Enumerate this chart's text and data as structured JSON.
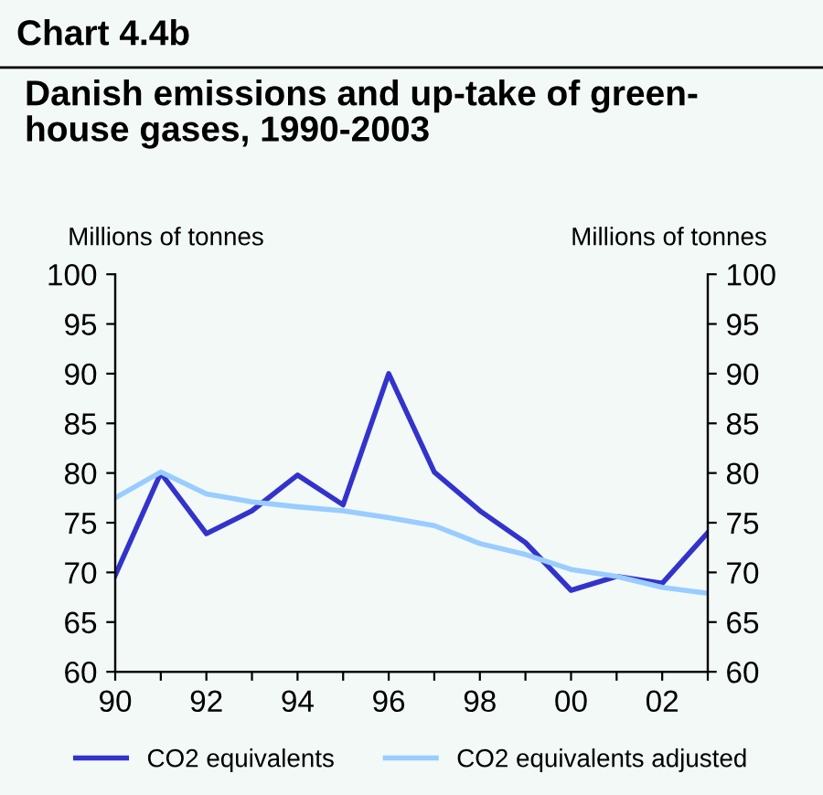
{
  "chart_data": {
    "type": "line",
    "title": "Chart 4.4b",
    "subtitle": "Danish emissions and up-take of green-\nhouse gases, 1990-2003",
    "ylabel": "Millions of tonnes",
    "y2label": "Millions of tonnes",
    "x": [
      1990,
      1991,
      1992,
      1993,
      1994,
      1995,
      1996,
      1997,
      1998,
      1999,
      2000,
      2001,
      2002,
      2003
    ],
    "series": [
      {
        "name": "CO2 equivalents",
        "color": "#3333cc",
        "values": [
          69.7,
          80,
          73.9,
          76.2,
          79.8,
          76.8,
          90,
          80.1,
          76.2,
          73,
          68.2,
          69.6,
          68.9,
          74
        ]
      },
      {
        "name": "CO2 equivalents adjusted",
        "color": "#99ccff",
        "values": [
          77.5,
          80.1,
          77.9,
          77.1,
          76.6,
          76.2,
          75.5,
          74.7,
          72.9,
          71.8,
          70.3,
          69.6,
          68.5,
          67.9
        ]
      }
    ],
    "xlim": [
      1990,
      2003
    ],
    "xticks": [
      {
        "value": 1990,
        "label": "90"
      },
      {
        "value": 1991,
        "label": null
      },
      {
        "value": 1992,
        "label": "92"
      },
      {
        "value": 1993,
        "label": null
      },
      {
        "value": 1994,
        "label": "94"
      },
      {
        "value": 1995,
        "label": null
      },
      {
        "value": 1996,
        "label": "96"
      },
      {
        "value": 1997,
        "label": null
      },
      {
        "value": 1998,
        "label": "98"
      },
      {
        "value": 1999,
        "label": null
      },
      {
        "value": 2000,
        "label": "00"
      },
      {
        "value": 2001,
        "label": null
      },
      {
        "value": 2002,
        "label": "02"
      },
      {
        "value": 2003,
        "label": null
      }
    ],
    "ylim": [
      60,
      100
    ],
    "yticks": [
      60,
      65,
      70,
      75,
      80,
      85,
      90,
      95,
      100
    ],
    "y2lim": [
      60,
      100
    ],
    "y2ticks": [
      60,
      65,
      70,
      75,
      80,
      85,
      90,
      95,
      100
    ],
    "grid": false,
    "legend": "bottom",
    "marker": "none",
    "line_style": "solid"
  }
}
